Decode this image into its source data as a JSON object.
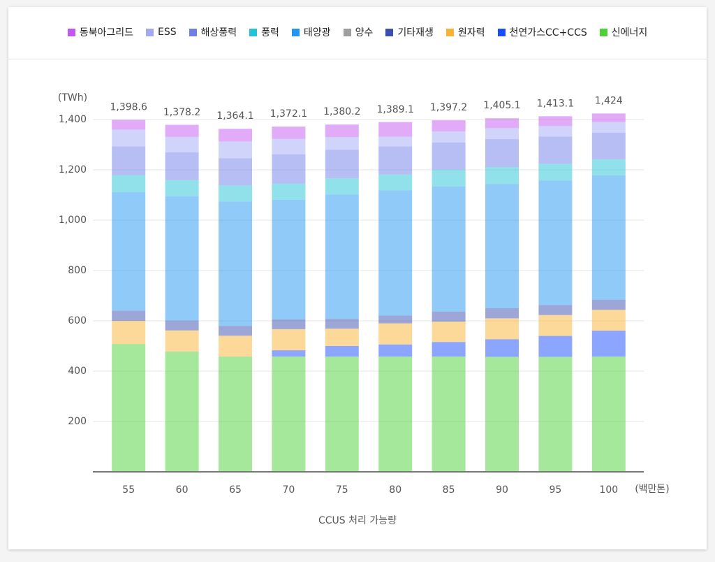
{
  "chart_data": {
    "type": "stacked_bar",
    "ylabel": "(TWh)",
    "xlabel": "CCUS 처리 가능량",
    "xunit": "(백만톤)",
    "categories": [
      "55",
      "60",
      "65",
      "70",
      "75",
      "80",
      "85",
      "90",
      "95",
      "100"
    ],
    "ylim": [
      0,
      1400
    ],
    "yticks": [
      200,
      400,
      600,
      800,
      {
        "value": 1000,
        "label": "1,000"
      },
      {
        "value": 1200,
        "label": "1,200"
      },
      {
        "value": 1400,
        "label": "1,400"
      }
    ],
    "grid": true,
    "legend_order": [
      9,
      8,
      7,
      6,
      5,
      4,
      3,
      2,
      1,
      0
    ],
    "series": [
      {
        "name": "신에너지",
        "color": "#4cd137",
        "values": [
          508,
          478,
          458,
          458,
          458,
          458,
          458,
          457,
          457,
          458
        ]
      },
      {
        "name": "천연가스CC+CCS",
        "color": "#1a4dff",
        "values": [
          0,
          0,
          0,
          25,
          42,
          48,
          58,
          70,
          83,
          103
        ]
      },
      {
        "name": "원자력",
        "color": "#f9b233",
        "values": [
          92,
          84,
          83,
          84,
          69,
          84,
          81,
          83,
          83,
          83
        ]
      },
      {
        "name": "기타재생",
        "color": "#3a4fb0",
        "values": [
          40,
          39,
          39,
          39,
          39,
          31,
          40,
          40,
          40,
          40
        ]
      },
      {
        "name": "양수",
        "color": "#9e9e9e",
        "values": [
          0,
          0,
          0,
          0,
          0,
          0,
          0,
          0,
          0,
          0
        ]
      },
      {
        "name": "태양광",
        "color": "#2196f3",
        "values": [
          472,
          494,
          494,
          475,
          494,
          497,
          497,
          494,
          494,
          494
        ]
      },
      {
        "name": "풍력",
        "color": "#22c3d6",
        "values": [
          67,
          64,
          64,
          64,
          64,
          64,
          67,
          67,
          67,
          64
        ]
      },
      {
        "name": "해상풍력",
        "color": "#6f7ee8",
        "values": [
          114,
          111,
          108,
          117,
          114,
          111,
          108,
          111,
          108,
          106
        ]
      },
      {
        "name": "ESS",
        "color": "#a3a9f5",
        "values": [
          67,
          61,
          67,
          61,
          50,
          39,
          44,
          44,
          42,
          42
        ]
      },
      {
        "name": "동북아그리드",
        "color": "#c457f0",
        "values": [
          39,
          48,
          50,
          49,
          50,
          58,
          44,
          39,
          39,
          34
        ]
      }
    ],
    "totals": {
      "values": [
        1398.6,
        1378.2,
        1364.1,
        1372.1,
        1380.2,
        1389.1,
        1397.2,
        1405.1,
        1413.1,
        1424
      ],
      "value_labels": [
        "1,398.6",
        "1,378.2",
        "1,364.1",
        "1,372.1",
        "1,380.2",
        "1,389.1",
        "1,397.2",
        "1,405.1",
        "1,413.1",
        "1,424"
      ]
    }
  }
}
